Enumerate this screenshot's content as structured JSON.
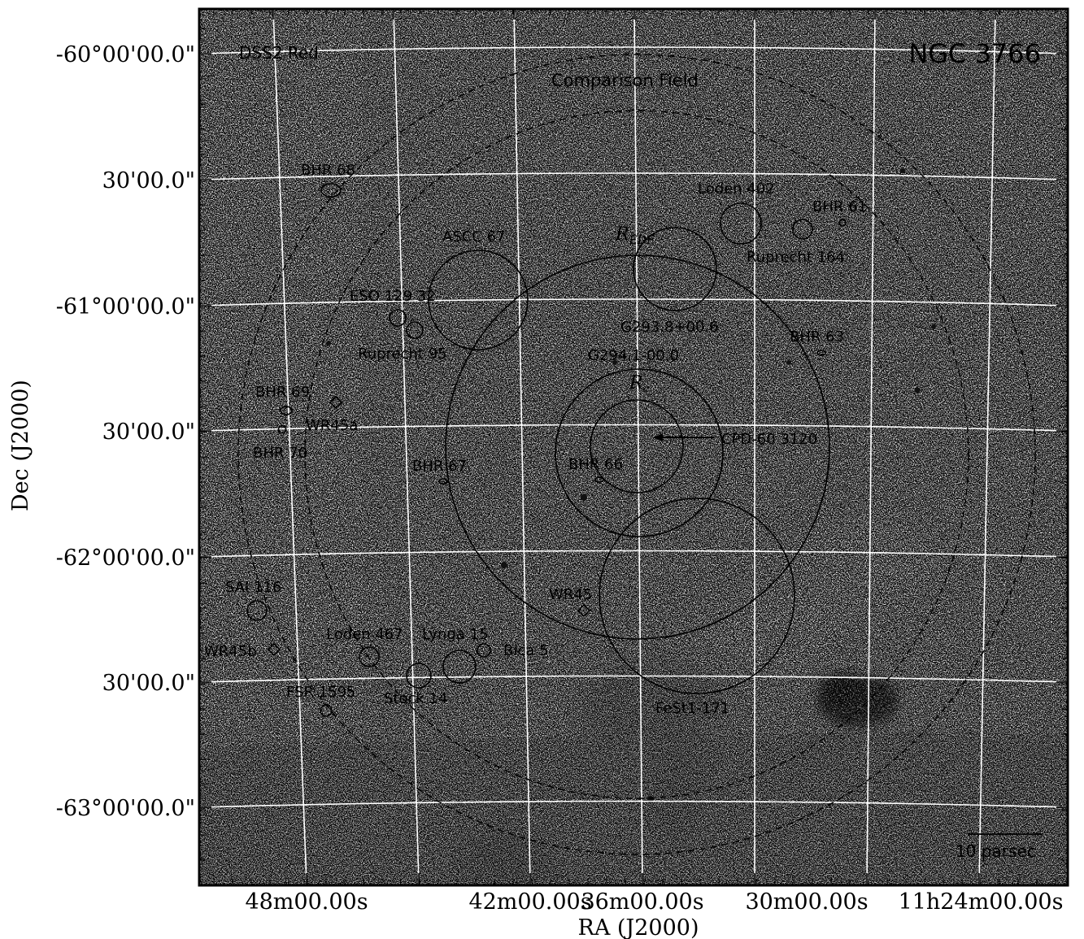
{
  "title": "NGC 3766",
  "survey": "DSS2 Red",
  "comparison_field": "Comparison Field",
  "axes": {
    "xlabel": "RA (J2000)",
    "ylabel": "Dec (J2000)",
    "xticks": [
      "48m00.00s",
      "42m00.00s",
      "36m00.00s",
      "30m00.00s",
      "11h24m00.00s"
    ],
    "yticks": [
      "-60°00'00.0\"",
      "30'00.0\"",
      "-61°00'00.0\"",
      "30'00.0\"",
      "-62°00'00.0\"",
      "30'00.0\"",
      "-63°00'00.0\""
    ]
  },
  "radius_labels": {
    "r_edf_main": "R",
    "r_edf_sub": "EDF",
    "r_c_main": "R",
    "r_c_sub": "c"
  },
  "scale_bar": "10 parsec",
  "objects": [
    "BHR 68",
    "Loden 402",
    "BHR 61",
    "ASCC 67",
    "Ruprecht 164",
    "ESO 129 32",
    "G293.8+00.6",
    "BHR 63",
    "Ruprecht 95",
    "G294.1-00.0",
    "BHR 69",
    "WR45a",
    "BHR 70",
    "CPD-60 3120",
    "BHR 67",
    "BHR 66",
    "SAI 116",
    "WR45",
    "Loden 467",
    "Lynga 15",
    "Bica 5",
    "WR45b",
    "FSR 1595",
    "Stock 14",
    "FeSt1-171"
  ],
  "colors": {
    "grid": "#ffffff",
    "markers": "#000000",
    "frame": "#000000"
  }
}
